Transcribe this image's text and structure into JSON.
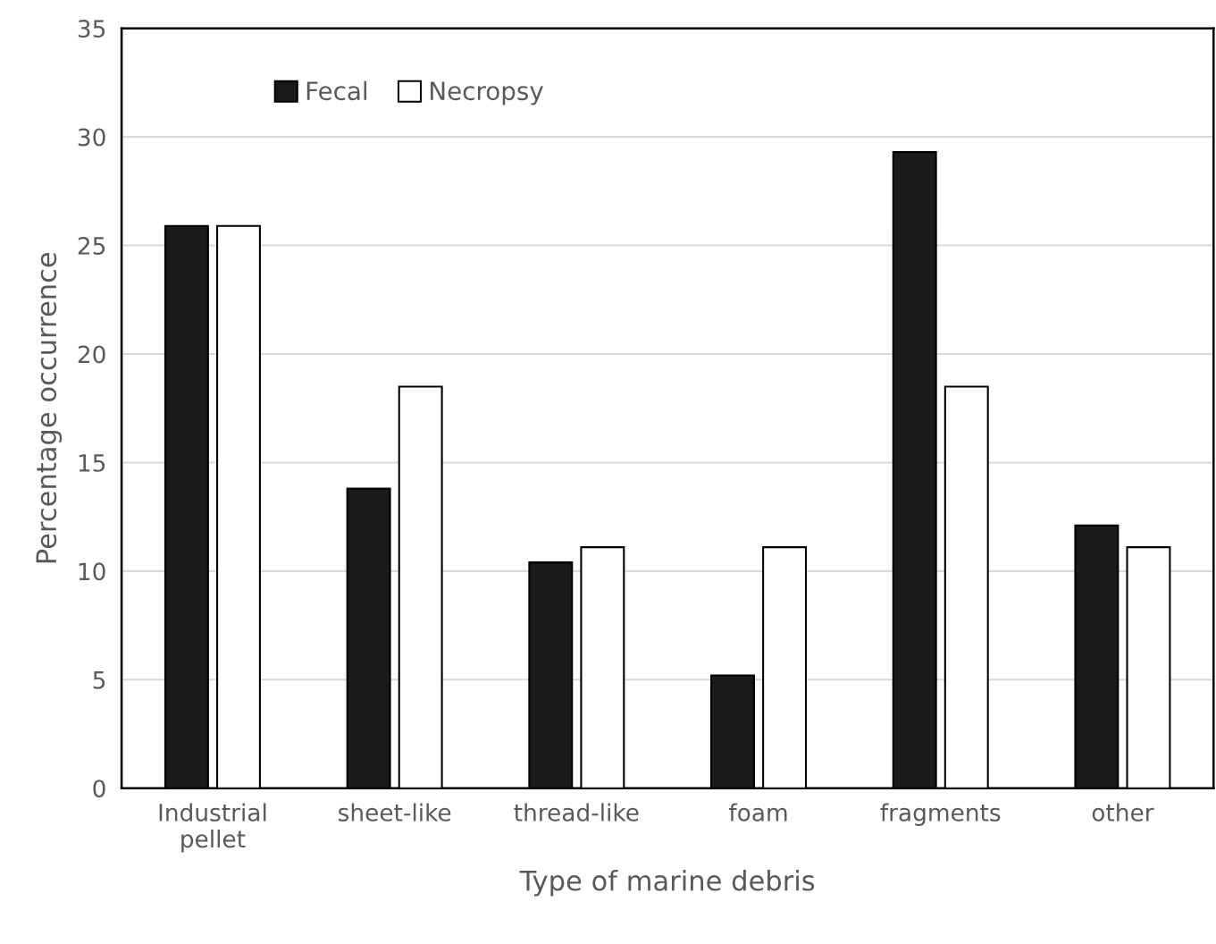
{
  "chart_data": {
    "type": "bar",
    "xlabel": "Type of marine debris",
    "ylabel": "Percentage occurrence",
    "categories": [
      "Industrial\npellet",
      "sheet-like",
      "thread-like",
      "foam",
      "fragments",
      "other"
    ],
    "series": [
      {
        "name": "Fecal",
        "color": "#1a1a1a",
        "values": [
          25.9,
          13.8,
          10.4,
          5.2,
          29.3,
          12.1
        ]
      },
      {
        "name": "Necropsy",
        "color": "#ffffff",
        "values": [
          25.9,
          18.5,
          11.1,
          11.1,
          18.5,
          11.1
        ]
      }
    ],
    "ylim": [
      0,
      35
    ],
    "yticks": [
      0,
      5,
      10,
      15,
      20,
      25,
      30,
      35
    ],
    "grid": "y",
    "legend": "top left"
  }
}
